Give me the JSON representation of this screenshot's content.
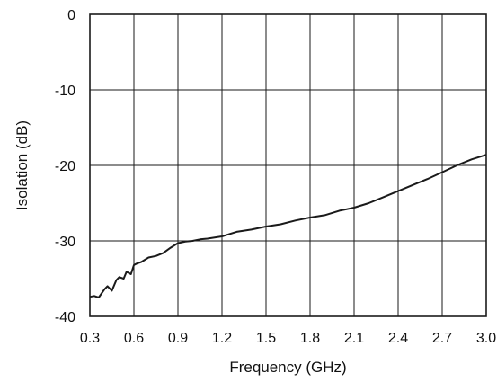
{
  "chart_data": {
    "type": "line",
    "title": "",
    "xlabel": "Frequency (GHz)",
    "ylabel": "Isolation (dB)",
    "xlim": [
      0.3,
      3.0
    ],
    "ylim": [
      -40,
      0
    ],
    "xticks": [
      "0.3",
      "0.6",
      "0.9",
      "1.2",
      "1.5",
      "1.8",
      "2.1",
      "2.4",
      "2.7",
      "3.0"
    ],
    "yticks": [
      "0",
      "-10",
      "-20",
      "-30",
      "-40"
    ],
    "grid": true,
    "series": [
      {
        "color": "#1a1a1a",
        "x": [
          0.3,
          0.33,
          0.36,
          0.4,
          0.42,
          0.45,
          0.48,
          0.5,
          0.53,
          0.55,
          0.58,
          0.6,
          0.62,
          0.65,
          0.7,
          0.75,
          0.8,
          0.85,
          0.9,
          0.95,
          1.0,
          1.05,
          1.1,
          1.2,
          1.3,
          1.4,
          1.5,
          1.6,
          1.7,
          1.8,
          1.9,
          2.0,
          2.1,
          2.2,
          2.3,
          2.4,
          2.5,
          2.6,
          2.7,
          2.8,
          2.9,
          3.0
        ],
        "values": [
          -37.4,
          -37.3,
          -37.5,
          -36.4,
          -36.0,
          -36.6,
          -35.2,
          -34.8,
          -35.0,
          -34.1,
          -34.4,
          -33.2,
          -33.0,
          -32.8,
          -32.2,
          -32.0,
          -31.6,
          -30.9,
          -30.3,
          -30.1,
          -30.0,
          -29.8,
          -29.7,
          -29.4,
          -28.8,
          -28.5,
          -28.1,
          -27.8,
          -27.3,
          -26.9,
          -26.6,
          -26.0,
          -25.6,
          -25.0,
          -24.2,
          -23.4,
          -22.6,
          -21.8,
          -20.9,
          -20.0,
          -19.2,
          -18.6
        ]
      }
    ]
  }
}
